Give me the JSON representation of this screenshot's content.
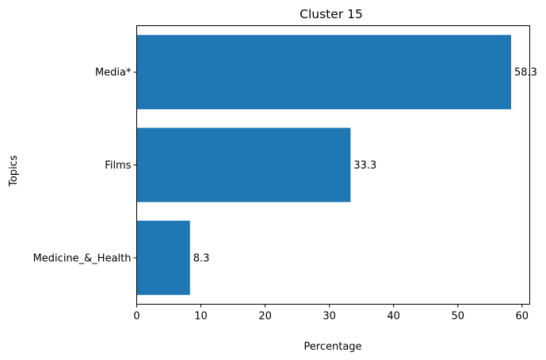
{
  "chart_data": {
    "type": "bar",
    "orientation": "horizontal",
    "title": "Cluster 15",
    "xlabel": "Percentage",
    "ylabel": "Topics",
    "categories": [
      "Medicine_&_Health",
      "Films",
      "Media*"
    ],
    "values": [
      8.3,
      33.3,
      58.3
    ],
    "data_labels": [
      "8.3",
      "33.3",
      "58.3"
    ],
    "xlim": [
      0,
      61.2
    ],
    "xticks": [
      0,
      10,
      20,
      30,
      40,
      50,
      60
    ],
    "bar_color": "#1f77b4",
    "grid": false
  }
}
